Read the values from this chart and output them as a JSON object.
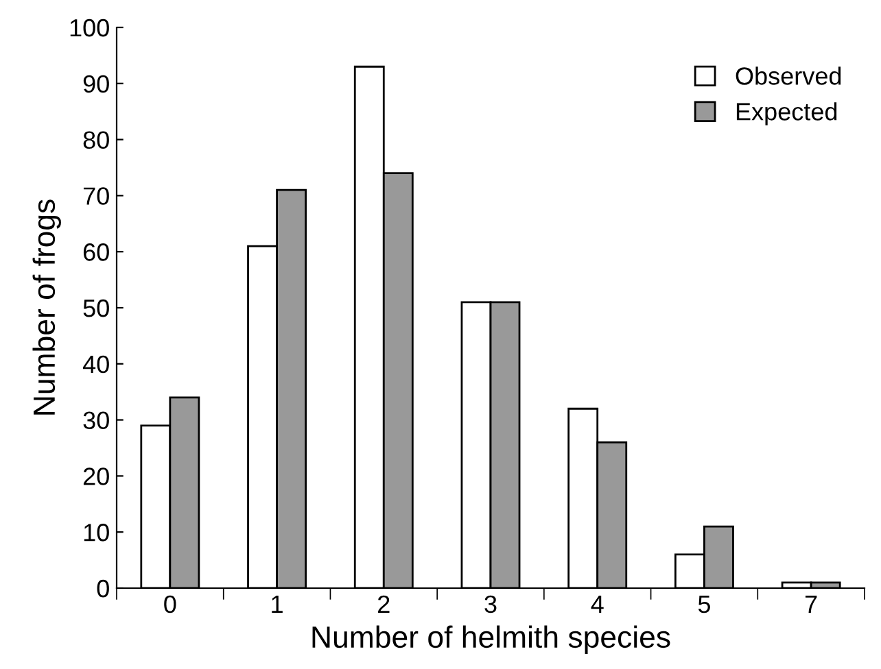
{
  "chart_data": {
    "type": "bar",
    "xlabel": "Number of helmith species",
    "ylabel": "Number of frogs",
    "categories": [
      "0",
      "1",
      "2",
      "3",
      "4",
      "5",
      "7"
    ],
    "series": [
      {
        "name": "Observed",
        "color": "#ffffff",
        "values": [
          29,
          61,
          93,
          51,
          32,
          6,
          1
        ]
      },
      {
        "name": "Expected",
        "color": "#999999",
        "values": [
          34,
          71,
          74,
          51,
          26,
          11,
          1
        ]
      }
    ],
    "ylim": [
      0,
      100
    ],
    "yticks": [
      0,
      10,
      20,
      30,
      40,
      50,
      60,
      70,
      80,
      90,
      100
    ],
    "legend": "top right",
    "grid": false
  }
}
